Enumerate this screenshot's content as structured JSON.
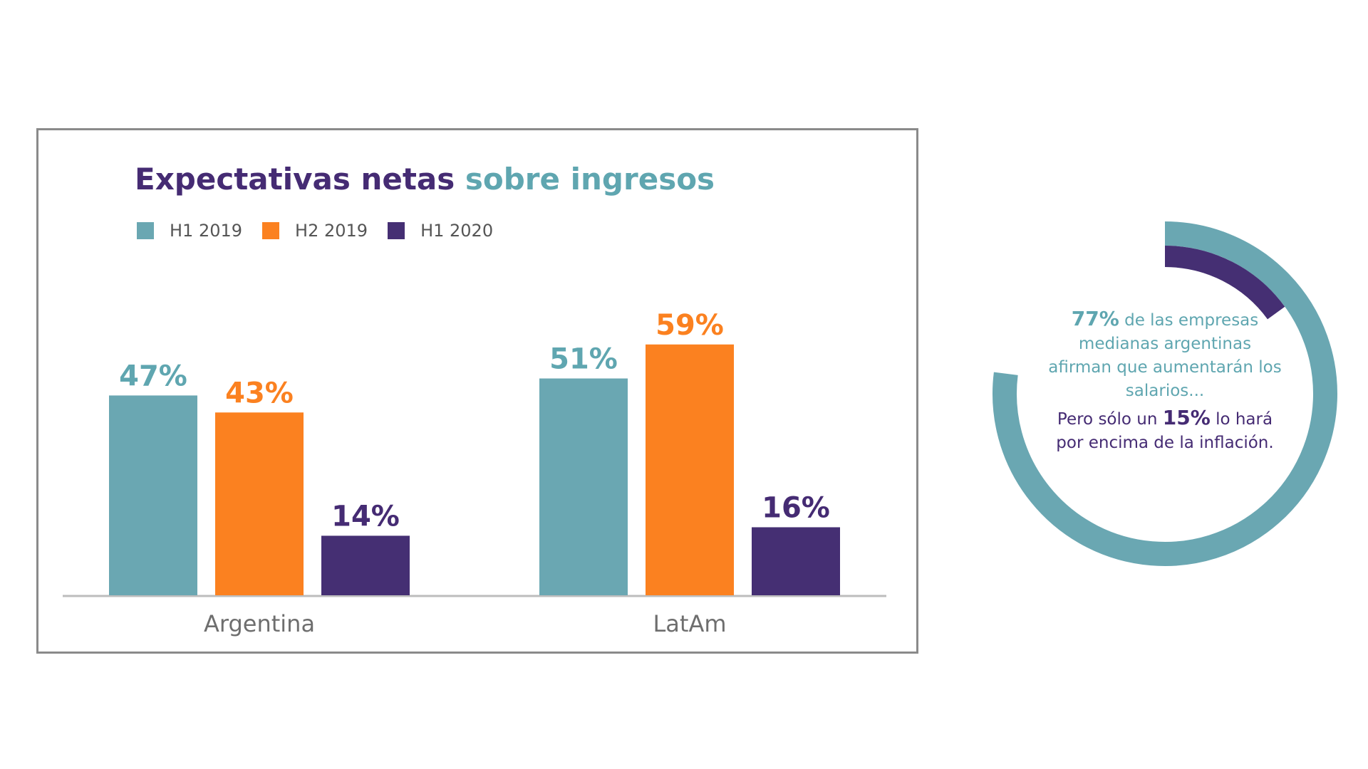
{
  "chart_data": {
    "type": "bar",
    "title_parts": [
      "Expectativas netas",
      "sobre ingresos"
    ],
    "categories": [
      "Argentina",
      "LatAm"
    ],
    "series": [
      {
        "name": "H1 2019",
        "values": [
          47,
          51
        ],
        "labels": [
          "47%",
          "51%"
        ],
        "color": "#6aa7b2"
      },
      {
        "name": "H2 2019",
        "values": [
          43,
          59
        ],
        "labels": [
          "43%",
          "59%"
        ],
        "color": "#fb8120"
      },
      {
        "name": "H1 2020",
        "values": [
          14,
          16
        ],
        "labels": [
          "14%",
          "16%"
        ],
        "color": "#452f73"
      }
    ],
    "ylim": [
      0,
      60
    ],
    "grid": false,
    "legend_position": "top-left"
  },
  "donut": {
    "value": 77,
    "highlight_value": 15,
    "ring_color": "#6aa7b2",
    "highlight_color": "#452f73",
    "stat1": "77%",
    "text1": " de las empresas medianas argentinas afirman que aumentarán los salarios...",
    "text2_prefix": "Pero sólo un ",
    "stat2": "15%",
    "text2_suffix": " lo hará por encima de la inflación."
  }
}
